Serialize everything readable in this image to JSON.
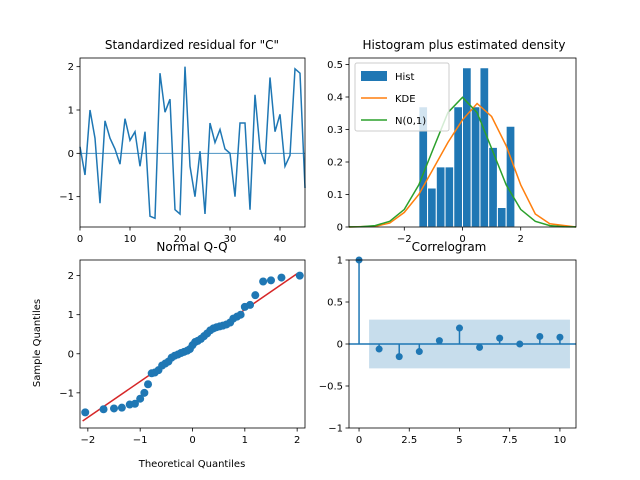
{
  "chart_data": [
    {
      "type": "line",
      "title": "Standardized residual for \"C\"",
      "xlabel": "",
      "ylabel": "",
      "xlim": [
        0,
        45
      ],
      "ylim": [
        -1.7,
        2.2
      ],
      "x_ticks": [
        0,
        10,
        20,
        30,
        40
      ],
      "y_ticks": [
        -1,
        0,
        1,
        2
      ],
      "series": [
        {
          "x": [
            0,
            1,
            2,
            3,
            4,
            5,
            6,
            7,
            8,
            9,
            10,
            11,
            12,
            13,
            14,
            15,
            16,
            17,
            18,
            19,
            20,
            21,
            22,
            23,
            24,
            25,
            26,
            27,
            28,
            29,
            30,
            31,
            32,
            33,
            34,
            35,
            36,
            37,
            38,
            39,
            40,
            41,
            42,
            43,
            44,
            45
          ],
          "values": [
            0.15,
            -0.5,
            1.0,
            0.35,
            -1.15,
            0.75,
            0.35,
            0.1,
            -0.25,
            0.8,
            0.3,
            0.5,
            -0.3,
            0.5,
            -1.45,
            -1.5,
            1.85,
            0.95,
            1.25,
            -1.3,
            -1.4,
            2.0,
            -0.3,
            -1.0,
            0.05,
            -1.4,
            0.7,
            0.25,
            0.55,
            0.1,
            0.0,
            -1.0,
            0.7,
            0.7,
            -1.3,
            1.35,
            0.1,
            -0.25,
            1.75,
            0.5,
            0.9,
            -0.3,
            -0.05,
            1.95,
            1.85,
            -0.8
          ]
        }
      ],
      "reference_line": 0,
      "grid": false
    },
    {
      "type": "bar",
      "title": "Histogram plus estimated density",
      "xlabel": "",
      "ylabel": "",
      "xlim": [
        -3.9,
        3.9
      ],
      "ylim": [
        0,
        0.52
      ],
      "x_ticks": [
        -2,
        0,
        2
      ],
      "y_ticks": [
        0.0,
        0.1,
        0.2,
        0.3,
        0.4,
        0.5
      ],
      "legend": [
        "Hist",
        "KDE",
        "N(0,1)"
      ],
      "legend_position": "top-left",
      "hist": {
        "bin_edges": [
          -1.5,
          -1.2,
          -0.9,
          -0.6,
          -0.3,
          0.0,
          0.3,
          0.6,
          0.9,
          1.2,
          1.5,
          1.8,
          2.1
        ],
        "values": [
          0.37,
          0.12,
          0.185,
          0.185,
          0.37,
          0.49,
          0.37,
          0.49,
          0.245,
          0.06,
          0.31,
          0.0
        ]
      },
      "kde": {
        "x": [
          -3.9,
          -3.0,
          -2.5,
          -2.0,
          -1.5,
          -1.0,
          -0.5,
          0.0,
          0.5,
          1.0,
          1.5,
          2.0,
          2.5,
          3.0,
          3.9
        ],
        "values": [
          0.0,
          0.002,
          0.012,
          0.045,
          0.1,
          0.18,
          0.26,
          0.33,
          0.38,
          0.34,
          0.25,
          0.13,
          0.04,
          0.01,
          0.0
        ]
      },
      "normal": {
        "x": [
          -3.9,
          -3.5,
          -3.0,
          -2.5,
          -2.0,
          -1.5,
          -1.0,
          -0.5,
          0.0,
          0.5,
          1.0,
          1.5,
          2.0,
          2.5,
          3.0,
          3.5,
          3.9
        ],
        "values": [
          0.0002,
          0.0009,
          0.0044,
          0.0175,
          0.054,
          0.1295,
          0.242,
          0.352,
          0.399,
          0.352,
          0.242,
          0.1295,
          0.054,
          0.0175,
          0.0044,
          0.0009,
          0.0002
        ]
      },
      "colors": {
        "Hist": "#1f77b4",
        "KDE": "#ff7f0e",
        "N(0,1)": "#2ca02c"
      }
    },
    {
      "type": "scatter",
      "title": "Normal Q-Q",
      "xlabel": "Theoretical Quantiles",
      "ylabel": "Sample Quantiles",
      "xlim": [
        -2.15,
        2.15
      ],
      "ylim": [
        -1.9,
        2.4
      ],
      "x_ticks": [
        -2,
        -1,
        0,
        1,
        2
      ],
      "y_ticks": [
        -1,
        0,
        1,
        2
      ],
      "points": [
        [
          -2.05,
          -1.5
        ],
        [
          -1.7,
          -1.42
        ],
        [
          -1.5,
          -1.4
        ],
        [
          -1.35,
          -1.38
        ],
        [
          -1.2,
          -1.3
        ],
        [
          -1.1,
          -1.28
        ],
        [
          -1.0,
          -1.15
        ],
        [
          -0.92,
          -1.0
        ],
        [
          -0.85,
          -0.78
        ],
        [
          -0.78,
          -0.5
        ],
        [
          -0.72,
          -0.48
        ],
        [
          -0.65,
          -0.42
        ],
        [
          -0.58,
          -0.3
        ],
        [
          -0.52,
          -0.25
        ],
        [
          -0.46,
          -0.2
        ],
        [
          -0.4,
          -0.1
        ],
        [
          -0.34,
          -0.05
        ],
        [
          -0.28,
          -0.02
        ],
        [
          -0.22,
          0.02
        ],
        [
          -0.16,
          0.05
        ],
        [
          -0.1,
          0.08
        ],
        [
          -0.05,
          0.12
        ],
        [
          0.0,
          0.22
        ],
        [
          0.05,
          0.3
        ],
        [
          0.1,
          0.33
        ],
        [
          0.16,
          0.38
        ],
        [
          0.22,
          0.45
        ],
        [
          0.28,
          0.52
        ],
        [
          0.34,
          0.6
        ],
        [
          0.4,
          0.65
        ],
        [
          0.46,
          0.68
        ],
        [
          0.52,
          0.7
        ],
        [
          0.58,
          0.72
        ],
        [
          0.65,
          0.75
        ],
        [
          0.72,
          0.8
        ],
        [
          0.78,
          0.9
        ],
        [
          0.85,
          0.95
        ],
        [
          0.92,
          1.0
        ],
        [
          1.0,
          1.2
        ],
        [
          1.1,
          1.25
        ],
        [
          1.2,
          1.5
        ],
        [
          1.35,
          1.85
        ],
        [
          1.5,
          1.88
        ],
        [
          1.7,
          1.95
        ],
        [
          2.05,
          2.0
        ]
      ],
      "reference_line": {
        "x": [
          -2.1,
          2.0
        ],
        "y": [
          -1.72,
          2.05
        ],
        "color": "#d62728"
      }
    },
    {
      "type": "bar",
      "title": "Correlogram",
      "xlabel": "",
      "ylabel": "",
      "xlim": [
        -0.5,
        10.8
      ],
      "ylim": [
        -1.0,
        1.0
      ],
      "x_ticks": [
        0.0,
        2.5,
        5.0,
        7.5,
        10.0
      ],
      "y_ticks": [
        -1.0,
        -0.5,
        0.0,
        0.5,
        1.0
      ],
      "lags": [
        0,
        1,
        2,
        3,
        4,
        5,
        6,
        7,
        8,
        9,
        10
      ],
      "values": [
        1.0,
        -0.06,
        -0.15,
        -0.09,
        0.04,
        0.19,
        -0.04,
        0.07,
        0.0,
        0.09,
        0.08
      ],
      "confidence_band": [
        -0.29,
        0.29
      ]
    }
  ]
}
